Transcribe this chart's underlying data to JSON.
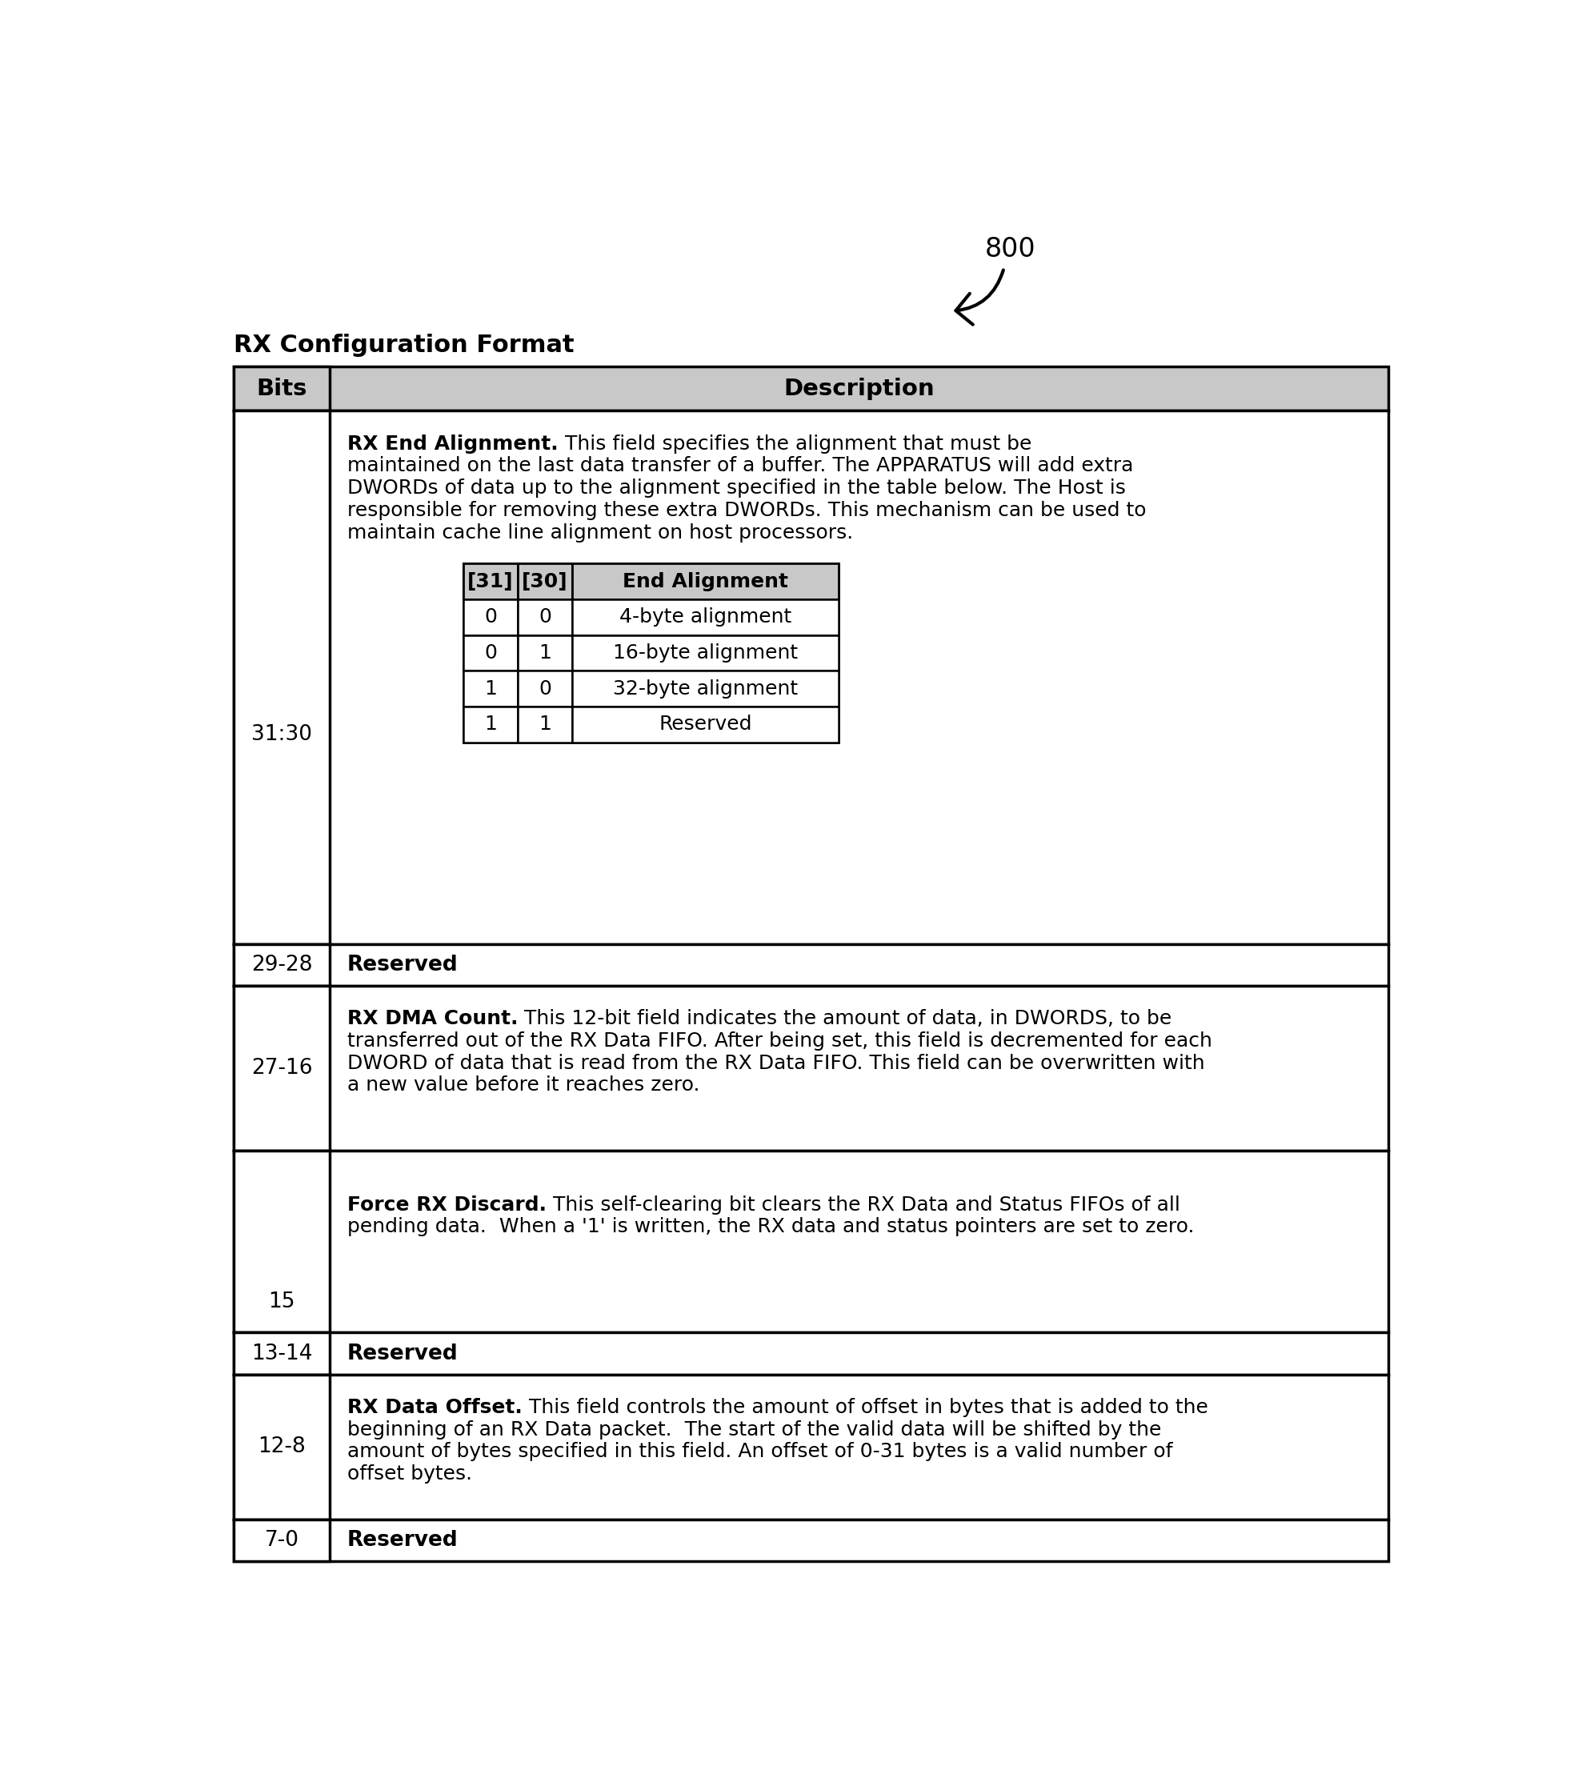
{
  "title": "RX Configuration Format",
  "label_800": "800",
  "bg_color": "#ffffff",
  "border_color": "#000000",
  "header_bg": "#c8c8c8",
  "text_color": "#000000",
  "rx_end_alignment_bold": "RX End Alignment.",
  "rx_end_alignment_rest_line1": " This field specifies the alignment that must be",
  "rx_end_alignment_lines": [
    "maintained on the last data transfer of a buffer. The APPARATUS will add extra",
    "DWORDs of data up to the alignment specified in the table below. The Host is",
    "responsible for removing these extra DWORDs. This mechanism can be used to",
    "maintain cache line alignment on host processors."
  ],
  "inner_table_headers": [
    "[31]",
    "[30]",
    "End Alignment"
  ],
  "inner_table_rows": [
    [
      "0",
      "0",
      "4-byte alignment"
    ],
    [
      "0",
      "1",
      "16-byte alignment"
    ],
    [
      "1",
      "0",
      "32-byte alignment"
    ],
    [
      "1",
      "1",
      "Reserved"
    ]
  ],
  "rx_dma_count_bold": "RX DMA Count.",
  "rx_dma_count_rest_line1": " This 12-bit field indicates the amount of data, in DWORDS, to be",
  "rx_dma_count_lines": [
    "transferred out of the RX Data FIFO. After being set, this field is decremented for each",
    "DWORD of data that is read from the RX Data FIFO. This field can be overwritten with",
    "a new value before it reaches zero."
  ],
  "force_rx_discard_bold": "Force RX Discard.",
  "force_rx_discard_rest_line1": " This self-clearing bit clears the RX Data and Status FIFOs of all",
  "force_rx_discard_lines": [
    "pending data.  When a '1' is written, the RX data and status pointers are set to zero."
  ],
  "rx_data_offset_bold": "RX Data Offset.",
  "rx_data_offset_rest_line1": " This field controls the amount of offset in bytes that is added to the",
  "rx_data_offset_lines": [
    "beginning of an RX Data packet.  The start of the valid data will be shifted by the",
    "amount of bytes specified in this field. An offset of 0-31 bytes is a valid number of",
    "offset bytes."
  ]
}
